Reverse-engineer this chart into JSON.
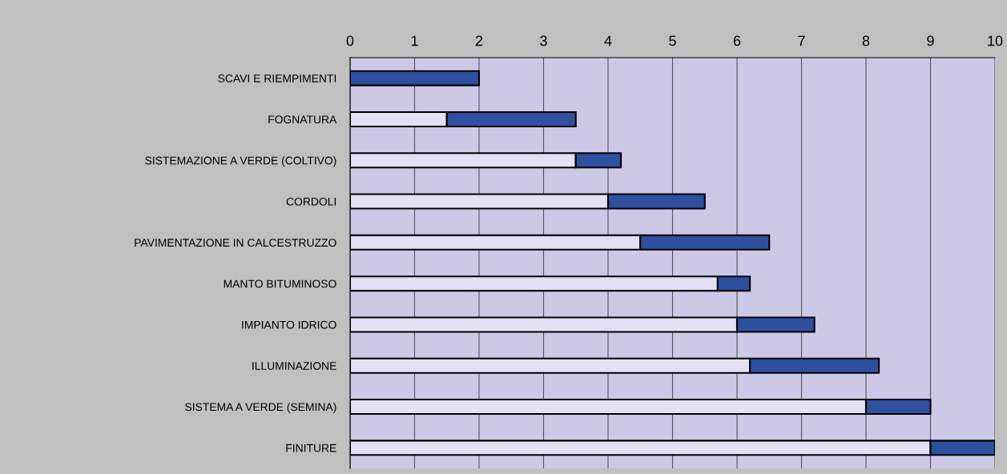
{
  "chart_data": {
    "type": "bar",
    "orientation": "horizontal",
    "stacked": true,
    "categories": [
      "SCAVI E RIEMPIMENTI",
      "FOGNATURA",
      "SISTEMAZIONE A VERDE (COLTIVO)",
      "CORDOLI",
      "PAVIMENTAZIONE IN CALCESTRUZZO",
      "MANTO BITUMINOSO",
      "IMPIANTO IDRICO",
      "ILLUMINAZIONE",
      "SISTEMA A VERDE (SEMINA)",
      "FINITURE"
    ],
    "series": [
      {
        "color": "#e2e0f2",
        "values": [
          0,
          1.5,
          3.5,
          4,
          4.5,
          5.7,
          6,
          6.2,
          8,
          9
        ]
      },
      {
        "color": "#2f4f9f",
        "values": [
          2,
          2,
          0.7,
          1.5,
          2,
          0.5,
          1.2,
          2,
          1,
          1
        ]
      }
    ],
    "xlim": [
      0,
      10
    ],
    "xticks": [
      0,
      1,
      2,
      3,
      4,
      5,
      6,
      7,
      8,
      9,
      10
    ],
    "grid": "x"
  }
}
